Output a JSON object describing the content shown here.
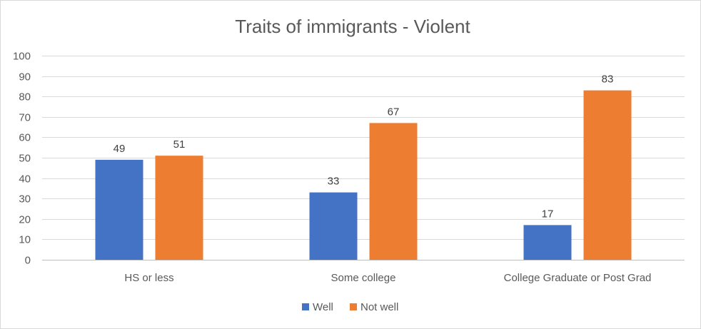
{
  "chart_data": {
    "type": "bar",
    "title": "Traits of immigrants - Violent",
    "categories": [
      "HS or less",
      "Some college",
      "College Graduate or Post Grad"
    ],
    "series": [
      {
        "name": "Well",
        "values": [
          49,
          33,
          17
        ],
        "color": "#4472c4"
      },
      {
        "name": "Not well",
        "values": [
          51,
          67,
          83
        ],
        "color": "#ed7d31"
      }
    ],
    "ylim": [
      0,
      100
    ],
    "yticks": [
      0,
      10,
      20,
      30,
      40,
      50,
      60,
      70,
      80,
      90,
      100
    ],
    "grid": true,
    "legend_position": "bottom"
  }
}
